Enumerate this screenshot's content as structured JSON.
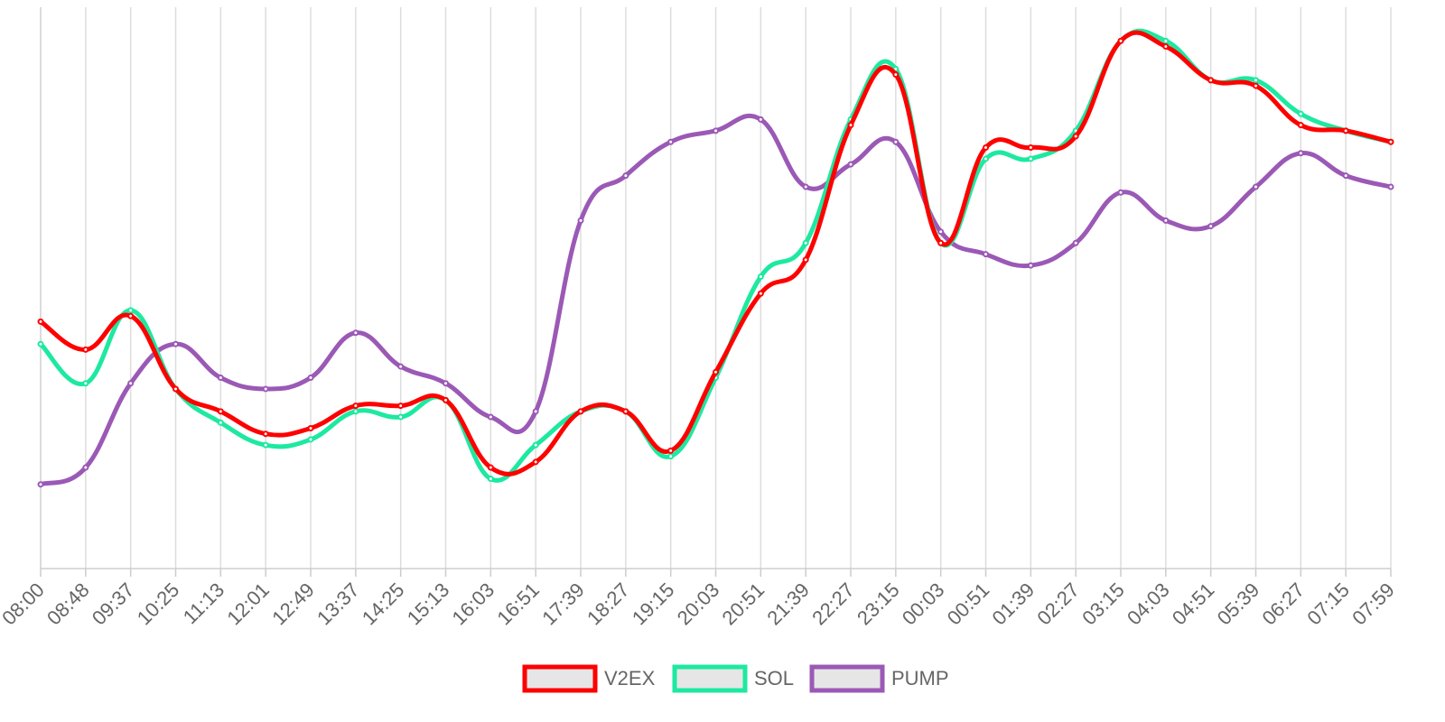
{
  "chart_data": {
    "type": "line",
    "title": "",
    "xlabel": "",
    "ylabel": "",
    "grid": "vertical",
    "legend_position": "bottom",
    "y_axis_labels_shown": false,
    "x_tick_labels": [
      "08:00",
      "08:48",
      "09:37",
      "10:25",
      "11:13",
      "12:01",
      "12:49",
      "13:37",
      "14:25",
      "15:13",
      "16:03",
      "16:51",
      "17:39",
      "18:27",
      "19:15",
      "20:03",
      "20:51",
      "21:39",
      "22:27",
      "23:15",
      "00:03",
      "00:51",
      "01:39",
      "02:27",
      "03:15",
      "04:03",
      "04:51",
      "05:39",
      "06:27",
      "07:15",
      "07:59"
    ],
    "x_index": [
      0,
      1,
      2,
      3,
      4,
      5,
      6,
      7,
      8,
      9,
      10,
      11,
      12,
      13,
      14,
      15,
      16,
      17,
      18,
      19,
      20,
      21,
      22,
      23,
      24,
      25,
      26,
      27,
      28,
      29,
      30
    ],
    "series": [
      {
        "name": "V2EX",
        "color": "#ff0000",
        "values": [
          44,
          39,
          45,
          32,
          28,
          24,
          25,
          29,
          29,
          30,
          18,
          19,
          28,
          28,
          21,
          35,
          49,
          55,
          79,
          88,
          58,
          75,
          75,
          77,
          94,
          93,
          87,
          86,
          79,
          78,
          76
        ]
      },
      {
        "name": "SOL",
        "color": "#1de9a0",
        "values": [
          40,
          33,
          46,
          32,
          26,
          22,
          23,
          28,
          27,
          30,
          16,
          22,
          28,
          28,
          20,
          34,
          52,
          58,
          80,
          89,
          58,
          73,
          73,
          78,
          94,
          94,
          87,
          87,
          81,
          78,
          76
        ]
      },
      {
        "name": "PUMP",
        "color": "#9b59b6",
        "values": [
          15,
          18,
          33,
          40,
          34,
          32,
          34,
          42,
          36,
          33,
          27,
          28,
          62,
          70,
          76,
          78,
          80,
          68,
          72,
          76,
          60,
          56,
          54,
          58,
          67,
          62,
          61,
          68,
          74,
          70,
          68
        ]
      }
    ],
    "ylim": [
      0,
      100
    ]
  }
}
